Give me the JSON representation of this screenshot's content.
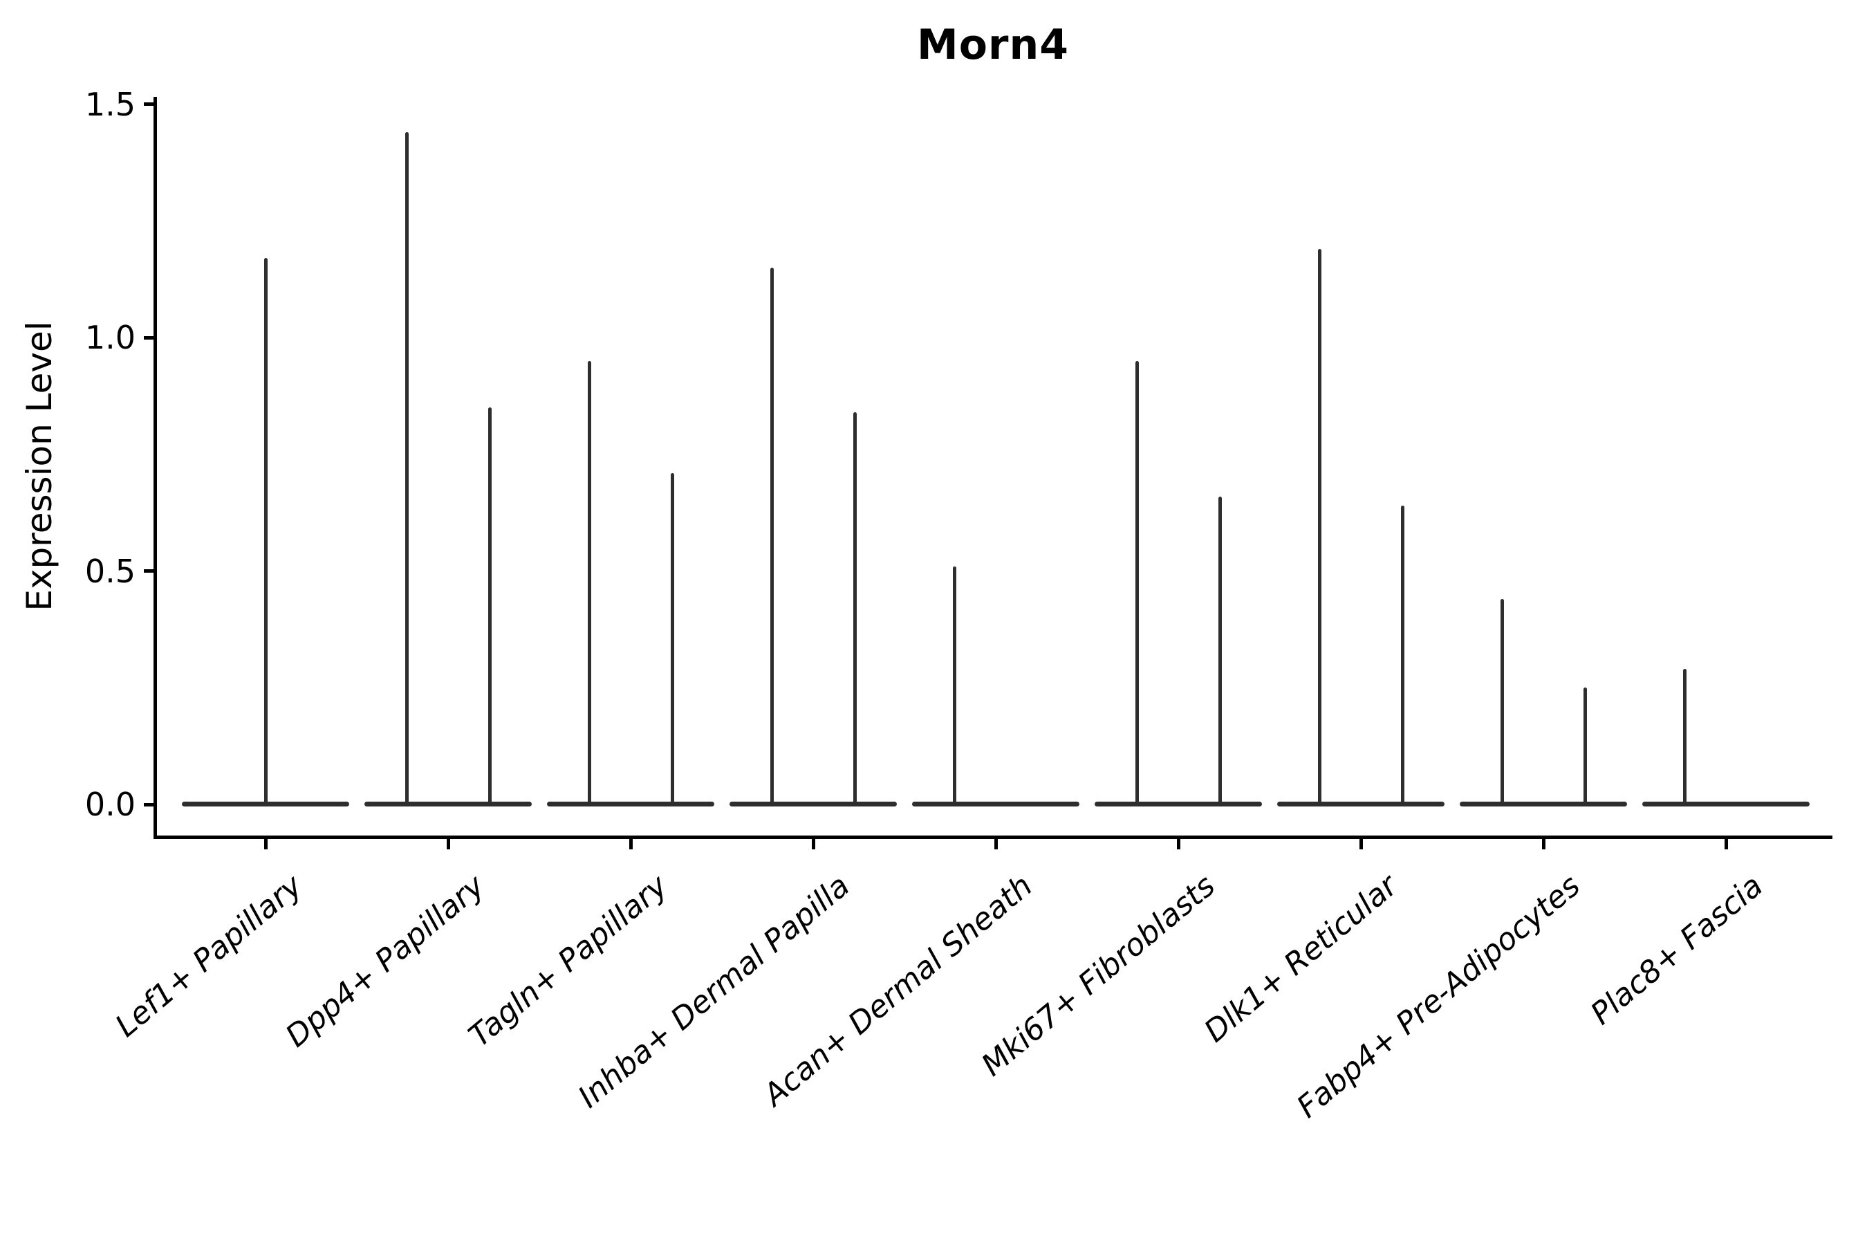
{
  "title": "Morn4",
  "y_axis": {
    "label": "Expression Level"
  },
  "chart_data": {
    "type": "violin",
    "title": "Morn4",
    "xlabel": "",
    "ylabel": "Expression Level",
    "ylim": [
      -0.08,
      1.53
    ],
    "yticks": [
      0.0,
      0.5,
      1.0,
      1.5
    ],
    "ytick_labels": [
      "0.0",
      "0.5",
      "1.0",
      "1.5"
    ],
    "grid": false,
    "legend": null,
    "description": "Violin plot of Morn4 expression level per fibroblast cluster; each violin collapses to a flat bar at 0 with a thin spike reaching its maximum expression value.",
    "categories": [
      {
        "label": "Lef1+ Papillary",
        "violins": [
          {
            "position": "center",
            "max": 1.17
          }
        ]
      },
      {
        "label": "Dpp4+ Papillary",
        "violins": [
          {
            "position": "left",
            "max": 1.44
          },
          {
            "position": "right",
            "max": 0.85
          }
        ]
      },
      {
        "label": "Tagln+ Papillary",
        "violins": [
          {
            "position": "left",
            "max": 0.95
          },
          {
            "position": "right",
            "max": 0.71
          }
        ]
      },
      {
        "label": "Inhba+ Dermal Papilla",
        "violins": [
          {
            "position": "left",
            "max": 1.15
          },
          {
            "position": "right",
            "max": 0.84
          }
        ]
      },
      {
        "label": "Acan+ Dermal Sheath",
        "violins": [
          {
            "position": "left",
            "max": 0.51
          }
        ]
      },
      {
        "label": "Mki67+ Fibroblasts",
        "violins": [
          {
            "position": "left",
            "max": 0.95
          },
          {
            "position": "right",
            "max": 0.66
          }
        ]
      },
      {
        "label": "Dlk1+ Reticular",
        "violins": [
          {
            "position": "left",
            "max": 1.19
          },
          {
            "position": "right",
            "max": 0.64
          }
        ]
      },
      {
        "label": "Fabp4+ Pre-Adipocytes",
        "violins": [
          {
            "position": "left",
            "max": 0.44
          },
          {
            "position": "right",
            "max": 0.25
          }
        ]
      },
      {
        "label": "Plac8+ Fascia",
        "violins": [
          {
            "position": "left",
            "max": 0.29
          }
        ]
      }
    ]
  },
  "style": {
    "violin_color": "#2e2e2e",
    "axis_color": "#000000",
    "text_color": "#000000",
    "background": "#ffffff"
  }
}
